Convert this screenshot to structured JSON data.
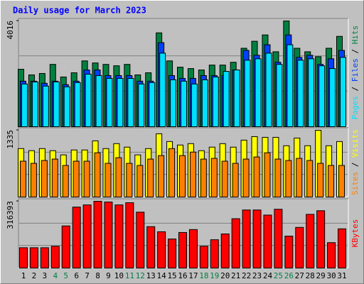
{
  "chart_data": [
    {
      "type": "bar",
      "title": "Daily usage for March 2023",
      "legend_separator": " / ",
      "ylim": [
        0,
        4016
      ],
      "yticks": [
        4016
      ],
      "series": [
        {
          "name": "Hits",
          "color": "#008040",
          "values": [
            2181,
            1968,
            2022,
            2367,
            1889,
            2048,
            2500,
            2421,
            2367,
            2314,
            2367,
            1968,
            2048,
            3564,
            2500,
            2261,
            2208,
            2155,
            2341,
            2341,
            2447,
            2979,
            3245,
            3485,
            2846,
            4016,
            2979,
            2846,
            2660,
            2979,
            3431
          ]
        },
        {
          "name": "Files",
          "color": "#0040ff",
          "values": [
            1729,
            1729,
            1649,
            1729,
            1596,
            1729,
            2155,
            2155,
            1942,
            1942,
            1942,
            1729,
            1729,
            3192,
            1942,
            1835,
            1835,
            1942,
            1942,
            1942,
            2155,
            2899,
            2713,
            3112,
            2447,
            3485,
            2633,
            2713,
            2367,
            2580,
            2899
          ]
        },
        {
          "name": "Pages",
          "color": "#00e0ff",
          "values": [
            1623,
            1702,
            1543,
            1702,
            1516,
            1676,
            1995,
            1942,
            1835,
            1835,
            1835,
            1623,
            1676,
            2793,
            1782,
            1729,
            1623,
            1782,
            1889,
            2101,
            2155,
            2527,
            2580,
            2793,
            2367,
            3112,
            2527,
            2580,
            2314,
            2208,
            2633
          ]
        }
      ]
    },
    {
      "type": "bar",
      "legend_separator": " / ",
      "ylim": [
        0,
        1335
      ],
      "yticks": [
        1335
      ],
      "series": [
        {
          "name": "Visits",
          "color": "#ffff00",
          "values": [
            969,
            927,
            969,
            927,
            843,
            941,
            941,
            1124,
            969,
            1068,
            998,
            843,
            969,
            1265,
            1110,
            1040,
            1068,
            927,
            998,
            1068,
            998,
            1138,
            1208,
            1194,
            1194,
            1026,
            1180,
            1026,
            1335,
            1026,
            1110
          ]
        },
        {
          "name": "Sites",
          "color": "#ff8000",
          "values": [
            717,
            674,
            731,
            759,
            632,
            717,
            717,
            885,
            674,
            787,
            674,
            632,
            759,
            829,
            969,
            829,
            899,
            759,
            773,
            717,
            674,
            759,
            801,
            885,
            759,
            731,
            773,
            731,
            674,
            632,
            632
          ]
        }
      ]
    },
    {
      "type": "bar",
      "ylim": [
        0,
        316393
      ],
      "yticks": [
        316393
      ],
      "categories": [
        "1",
        "2",
        "3",
        "4",
        "5",
        "6",
        "7",
        "8",
        "9",
        "10",
        "11",
        "12",
        "13",
        "14",
        "15",
        "16",
        "17",
        "18",
        "19",
        "20",
        "21",
        "22",
        "23",
        "24",
        "25",
        "26",
        "27",
        "28",
        "29",
        "30",
        "31"
      ],
      "category_colors": [
        "#000000",
        "#000000",
        "#000000",
        "#008040",
        "#008040",
        "#000000",
        "#000000",
        "#000000",
        "#000000",
        "#000000",
        "#008040",
        "#008040",
        "#000000",
        "#000000",
        "#000000",
        "#000000",
        "#000000",
        "#008040",
        "#008040",
        "#000000",
        "#000000",
        "#000000",
        "#000000",
        "#000000",
        "#008040",
        "#008040",
        "#000000",
        "#000000",
        "#000000",
        "#000000",
        "#000000"
      ],
      "series": [
        {
          "name": "KBytes",
          "color": "#ff0000",
          "values": [
            96292,
            96292,
            96292,
            103170,
            199462,
            288876,
            299193,
            316393,
            312954,
            299193,
            309510,
            264803,
            196023,
            171950,
            137560,
            168511,
            182267,
            103170,
            134121,
            161633,
            233852,
            275120,
            275120,
            251047,
            278559,
            151316,
            192584,
            254486,
            271681,
            120365,
            185706
          ]
        }
      ]
    }
  ]
}
